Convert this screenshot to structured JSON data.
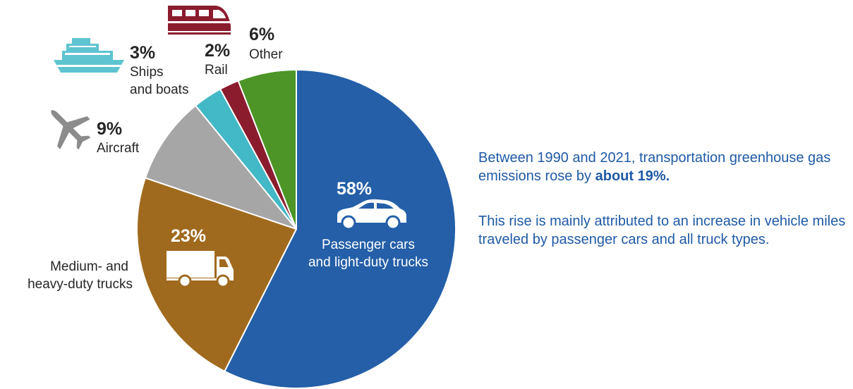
{
  "chart_data": {
    "type": "pie",
    "slices": [
      {
        "key": "passenger",
        "value": 58,
        "value_label": "58%",
        "label_lines": [
          "Passenger cars",
          "and light-duty trucks"
        ],
        "color": "#245fa8"
      },
      {
        "key": "trucks",
        "value": 23,
        "value_label": "23%",
        "label_lines": [
          "Medium- and",
          "heavy-duty trucks"
        ],
        "color": "#a06a1e"
      },
      {
        "key": "aircraft",
        "value": 9,
        "value_label": "9%",
        "label_lines": [
          "Aircraft"
        ],
        "color": "#a6a6a6"
      },
      {
        "key": "ships",
        "value": 3,
        "value_label": "3%",
        "label_lines": [
          "Ships",
          "and boats"
        ],
        "color": "#43b8c6"
      },
      {
        "key": "rail",
        "value": 2,
        "value_label": "2%",
        "label_lines": [
          "Rail"
        ],
        "color": "#8b1c2e"
      },
      {
        "key": "other",
        "value": 6,
        "value_label": "6%",
        "label_lines": [
          "Other"
        ],
        "color": "#4c9526"
      }
    ]
  },
  "icons": {
    "passenger": "car-icon",
    "trucks": "truck-icon",
    "aircraft": "airplane-icon",
    "ships": "ship-icon",
    "rail": "train-icon"
  },
  "note": {
    "para1_text": "Between 1990 and 2021, transportation greenhouse gas emissions rose by ",
    "para1_bold": "about 19%.",
    "para2": "This rise is mainly attributed to an increase in vehicle miles traveled by passenger cars and all truck types."
  }
}
